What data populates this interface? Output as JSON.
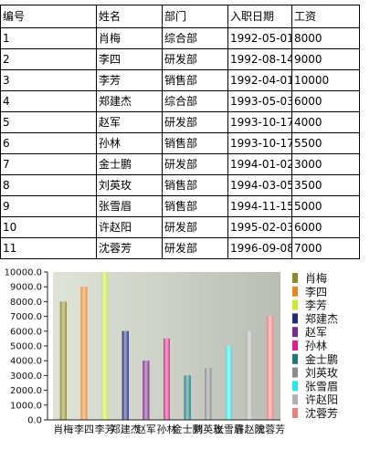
{
  "table": {
    "headers": [
      "编号",
      "姓名",
      "部门",
      "入职日期",
      "工资"
    ],
    "rows": [
      [
        "1",
        "肖梅",
        "综合部",
        "1992-05-01",
        "8000"
      ],
      [
        "2",
        "李四",
        "研发部",
        "1992-08-14",
        "9000"
      ],
      [
        "3",
        "李芳",
        "销售部",
        "1992-04-01",
        "10000"
      ],
      [
        "4",
        "郑建杰",
        "综合部",
        "1993-05-03",
        "6000"
      ],
      [
        "5",
        "赵军",
        "研发部",
        "1993-10-17",
        "4000"
      ],
      [
        "6",
        "孙林",
        "销售部",
        "1993-10-17",
        "5500"
      ],
      [
        "7",
        "金士鹏",
        "研发部",
        "1994-01-02",
        "3000"
      ],
      [
        "8",
        "刘英玫",
        "销售部",
        "1994-03-05",
        "3500"
      ],
      [
        "9",
        "张雪眉",
        "销售部",
        "1994-11-15",
        "5000"
      ],
      [
        "10",
        "许赵阳",
        "研发部",
        "1995-02-03",
        "6000"
      ],
      [
        "11",
        "沈蓉芳",
        "研发部",
        "1996-09-08",
        "7000"
      ]
    ]
  },
  "chart_data": {
    "type": "bar",
    "categories": [
      "肖梅",
      "李四",
      "李芳",
      "郑建杰",
      "赵军",
      "孙林",
      "金士鹏",
      "刘英玫",
      "张雪眉",
      "许赵阳",
      "沈蓉芳"
    ],
    "values": [
      8000,
      9000,
      10000,
      6000,
      4000,
      5500,
      3000,
      3500,
      5000,
      6000,
      7000
    ],
    "colors": [
      "#8a8a2e",
      "#e8862a",
      "#c8e83a",
      "#1e2a7a",
      "#7a2a8a",
      "#e0208a",
      "#1a7a7a",
      "#8a8a8a",
      "#2ae8e8",
      "#b0b0b0",
      "#e88080"
    ],
    "ylim": [
      0,
      10000
    ],
    "yticks": [
      "0.0",
      "1000.0",
      "2000.0",
      "3000.0",
      "4000.0",
      "5000.0",
      "6000.0",
      "7000.0",
      "8000.0",
      "9000.0",
      "10000.0"
    ],
    "legend_position": "right",
    "grid": false,
    "title": "",
    "xlabel": "",
    "ylabel": ""
  }
}
